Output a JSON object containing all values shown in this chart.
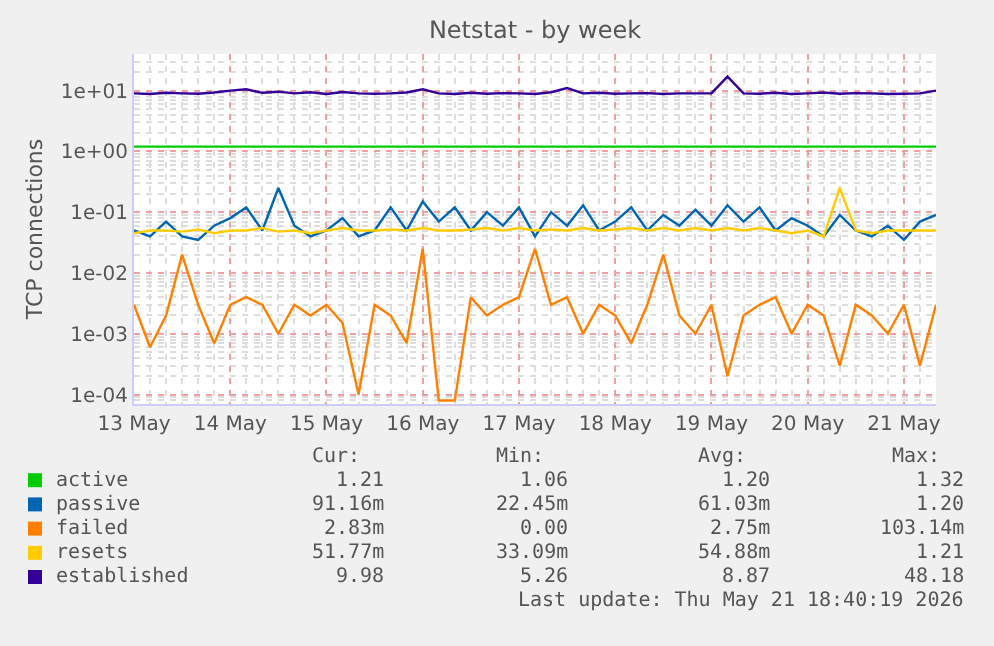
{
  "chart_data": {
    "type": "line",
    "title": "Netstat - by week",
    "ylabel": "TCP connections",
    "log": "y",
    "grid": true,
    "legend": "bottom",
    "x": [
      "2026-05-13T00:00",
      "2026-05-13T04:00",
      "2026-05-13T08:00",
      "2026-05-13T12:00",
      "2026-05-13T16:00",
      "2026-05-13T20:00",
      "2026-05-14T00:00",
      "2026-05-14T04:00",
      "2026-05-14T08:00",
      "2026-05-14T12:00",
      "2026-05-14T16:00",
      "2026-05-14T20:00",
      "2026-05-15T00:00",
      "2026-05-15T04:00",
      "2026-05-15T08:00",
      "2026-05-15T12:00",
      "2026-05-15T16:00",
      "2026-05-15T20:00",
      "2026-05-16T00:00",
      "2026-05-16T04:00",
      "2026-05-16T08:00",
      "2026-05-16T12:00",
      "2026-05-16T16:00",
      "2026-05-16T20:00",
      "2026-05-17T00:00",
      "2026-05-17T04:00",
      "2026-05-17T08:00",
      "2026-05-17T12:00",
      "2026-05-17T16:00",
      "2026-05-17T20:00",
      "2026-05-18T00:00",
      "2026-05-18T04:00",
      "2026-05-18T08:00",
      "2026-05-18T12:00",
      "2026-05-18T16:00",
      "2026-05-18T20:00",
      "2026-05-19T00:00",
      "2026-05-19T04:00",
      "2026-05-19T08:00",
      "2026-05-19T12:00",
      "2026-05-19T16:00",
      "2026-05-19T20:00",
      "2026-05-20T00:00",
      "2026-05-20T04:00",
      "2026-05-20T08:00",
      "2026-05-20T12:00",
      "2026-05-20T16:00",
      "2026-05-20T20:00",
      "2026-05-21T00:00",
      "2026-05-21T04:00",
      "2026-05-21T08:00"
    ],
    "xlim": [
      "2026-05-13T00:00",
      "2026-05-21T08:00"
    ],
    "xticks": [
      {
        "value": "2026-05-13",
        "label": "13 May"
      },
      {
        "value": "2026-05-14",
        "label": "14 May"
      },
      {
        "value": "2026-05-15",
        "label": "15 May"
      },
      {
        "value": "2026-05-16",
        "label": "16 May"
      },
      {
        "value": "2026-05-17",
        "label": "17 May"
      },
      {
        "value": "2026-05-18",
        "label": "18 May"
      },
      {
        "value": "2026-05-19",
        "label": "19 May"
      },
      {
        "value": "2026-05-20",
        "label": "20 May"
      },
      {
        "value": "2026-05-21",
        "label": "21 May"
      }
    ],
    "ylim": [
      7e-05,
      40
    ],
    "yticks": [
      {
        "value": 0.0001,
        "label": "1e-04"
      },
      {
        "value": 0.001,
        "label": "1e-03"
      },
      {
        "value": 0.01,
        "label": "1e-02"
      },
      {
        "value": 0.1,
        "label": "1e-01"
      },
      {
        "value": 1,
        "label": "1e+00"
      },
      {
        "value": 10,
        "label": "1e+01"
      }
    ],
    "series": [
      {
        "name": "active",
        "color": "#00cc00",
        "values": [
          1.2,
          1.2,
          1.2,
          1.2,
          1.2,
          1.2,
          1.2,
          1.2,
          1.2,
          1.2,
          1.2,
          1.2,
          1.2,
          1.2,
          1.2,
          1.2,
          1.2,
          1.2,
          1.2,
          1.2,
          1.2,
          1.2,
          1.2,
          1.2,
          1.2,
          1.2,
          1.2,
          1.2,
          1.2,
          1.2,
          1.2,
          1.2,
          1.2,
          1.2,
          1.2,
          1.2,
          1.2,
          1.2,
          1.2,
          1.2,
          1.2,
          1.2,
          1.2,
          1.2,
          1.2,
          1.2,
          1.2,
          1.2,
          1.2,
          1.2,
          1.2
        ]
      },
      {
        "name": "passive",
        "color": "#0066b3",
        "values": [
          0.05,
          0.04,
          0.07,
          0.04,
          0.035,
          0.06,
          0.08,
          0.12,
          0.05,
          0.25,
          0.06,
          0.04,
          0.05,
          0.08,
          0.04,
          0.05,
          0.12,
          0.05,
          0.15,
          0.07,
          0.12,
          0.05,
          0.1,
          0.06,
          0.12,
          0.04,
          0.1,
          0.06,
          0.13,
          0.05,
          0.07,
          0.12,
          0.05,
          0.09,
          0.06,
          0.11,
          0.06,
          0.13,
          0.07,
          0.12,
          0.05,
          0.08,
          0.06,
          0.04,
          0.09,
          0.05,
          0.04,
          0.06,
          0.035,
          0.07,
          0.09
        ]
      },
      {
        "name": "failed",
        "color": "#ff8000",
        "values": [
          0.003,
          0.0006,
          0.002,
          0.02,
          0.003,
          0.0007,
          0.003,
          0.004,
          0.003,
          0.001,
          0.003,
          0.002,
          0.003,
          0.0015,
          0.0001,
          0.003,
          0.002,
          0.0007,
          0.025,
          8e-05,
          8e-05,
          0.004,
          0.002,
          0.003,
          0.004,
          0.025,
          0.003,
          0.004,
          0.001,
          0.003,
          0.002,
          0.0007,
          0.003,
          0.02,
          0.002,
          0.001,
          0.003,
          0.0002,
          0.002,
          0.003,
          0.004,
          0.001,
          0.003,
          0.002,
          0.0003,
          0.003,
          0.002,
          0.001,
          0.003,
          0.0003,
          0.003
        ]
      },
      {
        "name": "resets",
        "color": "#ffcc00",
        "values": [
          0.045,
          0.05,
          0.05,
          0.048,
          0.052,
          0.045,
          0.05,
          0.05,
          0.055,
          0.048,
          0.05,
          0.045,
          0.05,
          0.055,
          0.05,
          0.05,
          0.052,
          0.05,
          0.055,
          0.05,
          0.05,
          0.052,
          0.055,
          0.05,
          0.055,
          0.05,
          0.052,
          0.05,
          0.055,
          0.05,
          0.052,
          0.055,
          0.05,
          0.055,
          0.05,
          0.055,
          0.05,
          0.055,
          0.05,
          0.055,
          0.05,
          0.045,
          0.05,
          0.04,
          0.25,
          0.05,
          0.045,
          0.05,
          0.05,
          0.05,
          0.05
        ]
      },
      {
        "name": "established",
        "color": "#330099",
        "values": [
          9,
          8.8,
          9.2,
          9,
          8.9,
          9.3,
          10,
          10.5,
          9.2,
          9.6,
          9,
          9.4,
          8.8,
          9.5,
          9,
          8.9,
          9,
          9.3,
          10.5,
          9,
          8.8,
          9.2,
          8.9,
          9.1,
          9,
          8.8,
          9.4,
          11,
          9,
          9.2,
          8.9,
          9,
          9.1,
          8.8,
          9,
          9,
          9,
          17,
          9,
          8.9,
          9.2,
          8.8,
          9,
          9.3,
          8.9,
          9.1,
          9,
          8.8,
          8.9,
          9,
          10
        ]
      }
    ],
    "annotations": [
      "Cur:",
      "Min:",
      "Avg:",
      "Max:",
      "1.21",
      "1.06",
      "1.20",
      "1.32",
      "91.16m",
      "22.45m",
      "61.03m",
      "1.20",
      "2.83m",
      "0.00",
      "2.75m",
      "103.14m",
      "51.77m",
      "33.09m",
      "54.88m",
      "1.21",
      "9.98",
      "5.26",
      "8.87",
      "48.18",
      "Last update: Thu May 21 18:40:19 2026"
    ]
  }
}
